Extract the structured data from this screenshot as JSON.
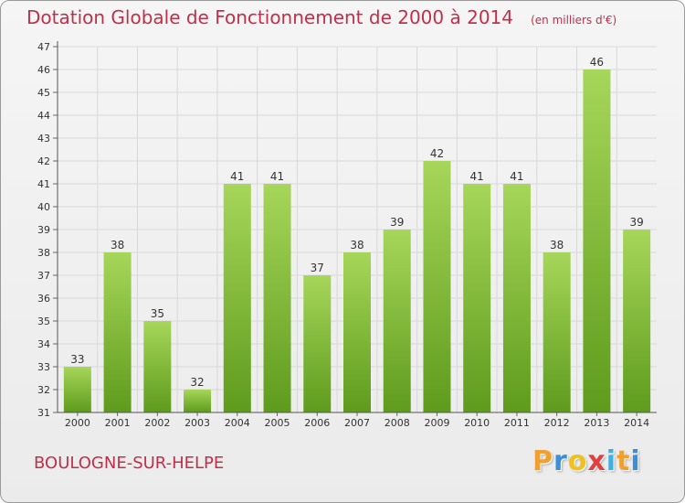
{
  "header": {
    "title": "Dotation Globale de Fonctionnement de 2000 à 2014",
    "subtitle": "(en milliers d'€)"
  },
  "footer": {
    "commune": "BOULOGNE-SUR-HELPE",
    "brand_letters": [
      "P",
      "r",
      "o",
      "x",
      "i",
      "t",
      "i"
    ],
    "brand_colors": [
      "#f0a030",
      "#3a8fd8",
      "#f0c020",
      "#e04040",
      "#40b0e0",
      "#f0a030",
      "#3a8fd8"
    ]
  },
  "colors": {
    "bar_top": "#a6d65a",
    "bar_bottom": "#5e9b1c",
    "accent": "#c0304a",
    "grid": "#d8d8d8"
  },
  "chart_data": {
    "type": "bar",
    "categories": [
      "2000",
      "2001",
      "2002",
      "2003",
      "2004",
      "2005",
      "2006",
      "2007",
      "2008",
      "2009",
      "2010",
      "2011",
      "2012",
      "2013",
      "2014"
    ],
    "values": [
      33,
      38,
      35,
      32,
      41,
      41,
      37,
      38,
      39,
      42,
      41,
      41,
      38,
      46,
      39
    ],
    "title": "Dotation Globale de Fonctionnement de 2000 à 2014",
    "subtitle": "(en milliers d'€)",
    "xlabel": "",
    "ylabel": "",
    "ylim": [
      31,
      47
    ],
    "yticks": [
      31,
      32,
      33,
      34,
      35,
      36,
      37,
      38,
      39,
      40,
      41,
      42,
      43,
      44,
      45,
      46,
      47
    ],
    "grid": true,
    "legend": "none"
  }
}
